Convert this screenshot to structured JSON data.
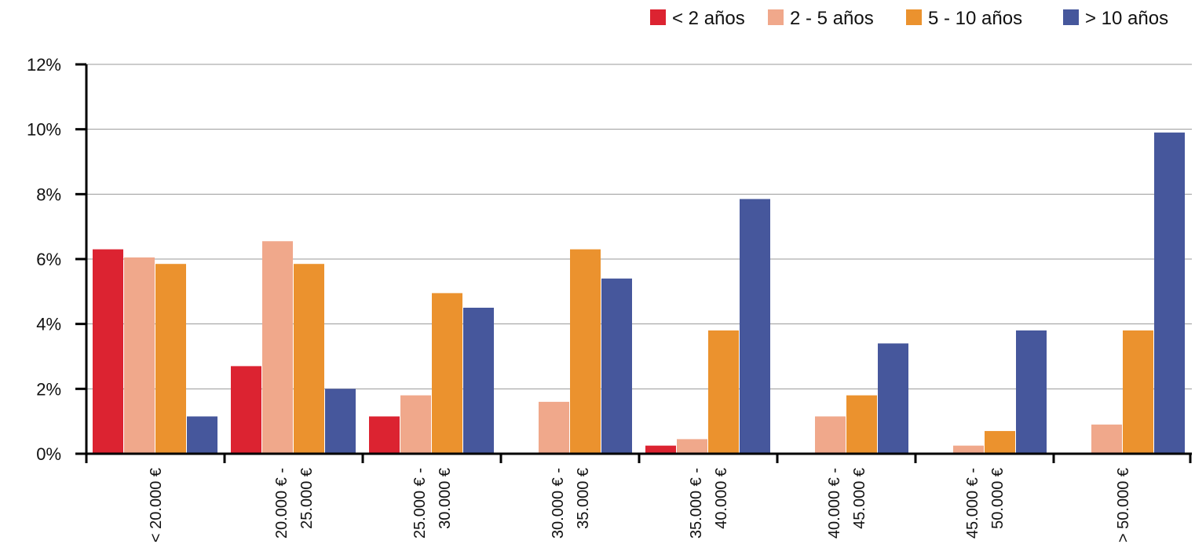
{
  "chart_data": {
    "type": "bar",
    "title": "",
    "xlabel": "",
    "ylabel": "",
    "ylim": [
      0,
      12
    ],
    "y_tick_values": [
      0,
      2,
      4,
      6,
      8,
      10,
      12
    ],
    "y_tick_labels": [
      "0%",
      "2%",
      "4%",
      "6%",
      "8%",
      "10%",
      "12%"
    ],
    "grid": true,
    "legend_position": "top-right",
    "categories": [
      [
        "< 20.000 €"
      ],
      [
        "20.000 € -",
        "25.000 €"
      ],
      [
        "25.000 € -",
        "30.000 €"
      ],
      [
        "30.000 € -",
        "35.000 €"
      ],
      [
        "35.000 € -",
        "40.000 €"
      ],
      [
        "40.000 € -",
        "45.000 €"
      ],
      [
        "45.000 € -",
        "50.000 €"
      ],
      [
        "> 50.000 €"
      ]
    ],
    "series": [
      {
        "name": "< 2 años",
        "color": "#dc2331",
        "values": [
          6.3,
          2.7,
          1.15,
          0,
          0.25,
          0,
          0,
          0
        ]
      },
      {
        "name": "2 - 5 años",
        "color": "#f0a88b",
        "values": [
          6.05,
          6.55,
          1.8,
          1.6,
          0.45,
          1.15,
          0.25,
          0.9
        ]
      },
      {
        "name": "5 - 10 años",
        "color": "#eb922e",
        "values": [
          5.85,
          5.85,
          4.95,
          6.3,
          3.8,
          1.8,
          0.7,
          3.8
        ]
      },
      {
        "name": "> 10 años",
        "color": "#46579c",
        "values": [
          1.15,
          2.0,
          4.5,
          5.4,
          7.85,
          3.4,
          3.8,
          9.9
        ]
      }
    ]
  }
}
